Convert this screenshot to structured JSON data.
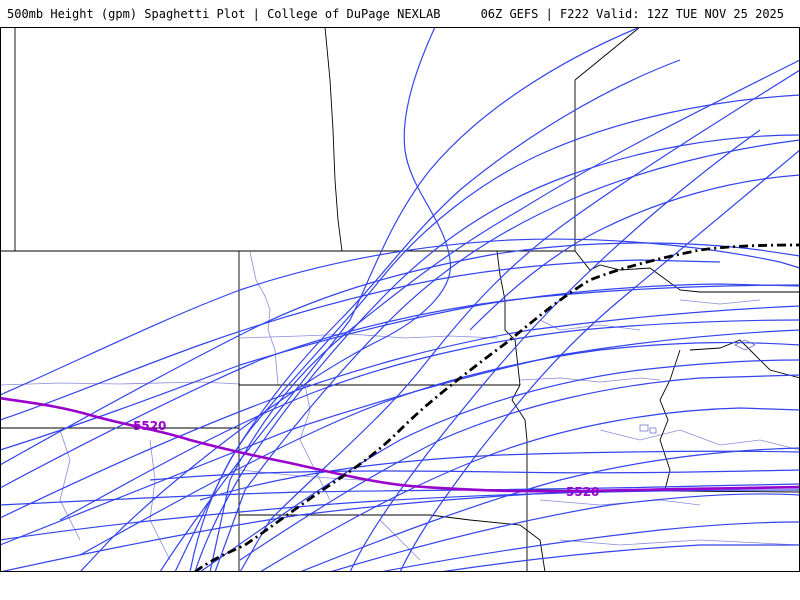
{
  "header": {
    "left_title": "500mb Height (gpm) Spaghetti Plot | College of DuPage NEXLAB",
    "right_title": "06Z GEFS | F222 Valid: 12Z TUE NOV 25 2025"
  },
  "contours": {
    "level_label_1": "5520",
    "level_label_2": "5520"
  },
  "colors": {
    "member_lines": "#3344ee",
    "ensemble_mean_contour": "#9900cc",
    "control_line": "#000000",
    "state_borders": "#000000",
    "county_borders": "#8a8ad8"
  }
}
